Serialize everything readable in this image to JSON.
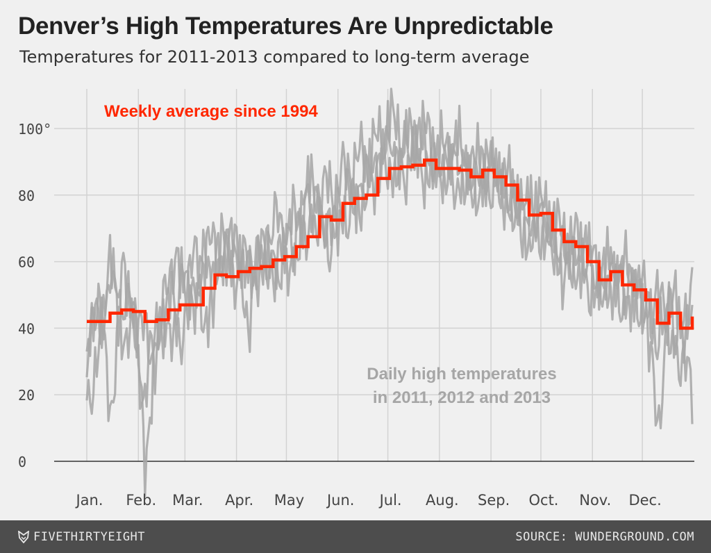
{
  "title": "Denver’s High Temperatures Are Unpredictable",
  "subtitle": "Temperatures for 2011-2013 compared to long-term average",
  "footer": {
    "brand": "FIVETHIRTYEIGHT",
    "brand_icon": "fox-icon",
    "source": "SOURCE: WUNDERGROUND.COM"
  },
  "chart_data": {
    "type": "line",
    "xlabel": "",
    "ylabel": "",
    "ylim": [
      0,
      110
    ],
    "xlim": [
      1,
      365
    ],
    "yticks": [
      0,
      20,
      40,
      60,
      80,
      100
    ],
    "ytick_labels": [
      "0",
      "20",
      "40",
      "60",
      "80",
      "100°"
    ],
    "months": [
      "Jan.",
      "Feb.",
      "Mar.",
      "Apr.",
      "May",
      "Jun.",
      "Jul.",
      "Aug.",
      "Sep.",
      "Oct.",
      "Nov.",
      "Dec."
    ],
    "month_start_days": [
      1,
      32,
      60,
      91,
      121,
      152,
      182,
      213,
      244,
      274,
      305,
      335
    ],
    "grid": true,
    "annotations": [
      {
        "text": "Weekly average since 1994",
        "color": "#ff2700"
      },
      {
        "lines": [
          "Daily high temperatures",
          "in 2011, 2012 and 2013"
        ],
        "color": "#a6a6a6"
      }
    ],
    "colors": {
      "average": "#ff2700",
      "daily": "#a6a6a6",
      "grid": "#d2d2d2",
      "zero_line": "#333333"
    },
    "series": [
      {
        "name": "Weekly average since 1994",
        "step": true,
        "values": [
          42,
          42,
          44.5,
          45.5,
          45,
          42,
          42.5,
          45.5,
          47,
          47,
          52,
          56,
          55.5,
          57,
          58,
          58.5,
          60.5,
          61.5,
          64.5,
          67.5,
          73.5,
          72.5,
          77.5,
          79,
          80,
          85,
          88,
          88.5,
          89,
          90.5,
          88,
          88,
          87.5,
          85.5,
          87.5,
          85.5,
          83,
          78.5,
          74,
          74.5,
          69.5,
          66,
          64.5,
          60,
          54.5,
          57,
          53,
          51.5,
          48.5,
          41.5,
          44.5,
          40,
          43.5
        ]
      },
      {
        "name": "Daily high temperatures",
        "values_weekly_2011": [
          27,
          54,
          12,
          55,
          50,
          1,
          33,
          50,
          38,
          45,
          60,
          52,
          70,
          58,
          42,
          64,
          51,
          66,
          64,
          82,
          68,
          66,
          75,
          74,
          82,
          90,
          95,
          90,
          97,
          93,
          86,
          90,
          91,
          80,
          84,
          92,
          80,
          76,
          67,
          75,
          67,
          57,
          58,
          62,
          52,
          55,
          52,
          50,
          47,
          9,
          46,
          30,
          23
        ],
        "values_weekly_2012": [
          36,
          43,
          57,
          44,
          48,
          37,
          31,
          60,
          55,
          58,
          63,
          65,
          60,
          56,
          62,
          62,
          72,
          70,
          72,
          80,
          82,
          81,
          86,
          90,
          92,
          96,
          102,
          99,
          95,
          100,
          92,
          94,
          93,
          90,
          89,
          86,
          84,
          80,
          72,
          77,
          70,
          68,
          66,
          62,
          57,
          58,
          58,
          54,
          50,
          47,
          50,
          42,
          41
        ],
        "values_weekly_2013": [
          19,
          30,
          60,
          40,
          38,
          18,
          45,
          35,
          52,
          56,
          40,
          58,
          64,
          66,
          54,
          60,
          65,
          58,
          66,
          72,
          76,
          68,
          78,
          82,
          84,
          88,
          90,
          85,
          93,
          88,
          90,
          86,
          84,
          85,
          86,
          82,
          80,
          72,
          73,
          70,
          65,
          60,
          63,
          54,
          50,
          56,
          48,
          52,
          44,
          38,
          40,
          36,
          56
        ]
      }
    ]
  }
}
